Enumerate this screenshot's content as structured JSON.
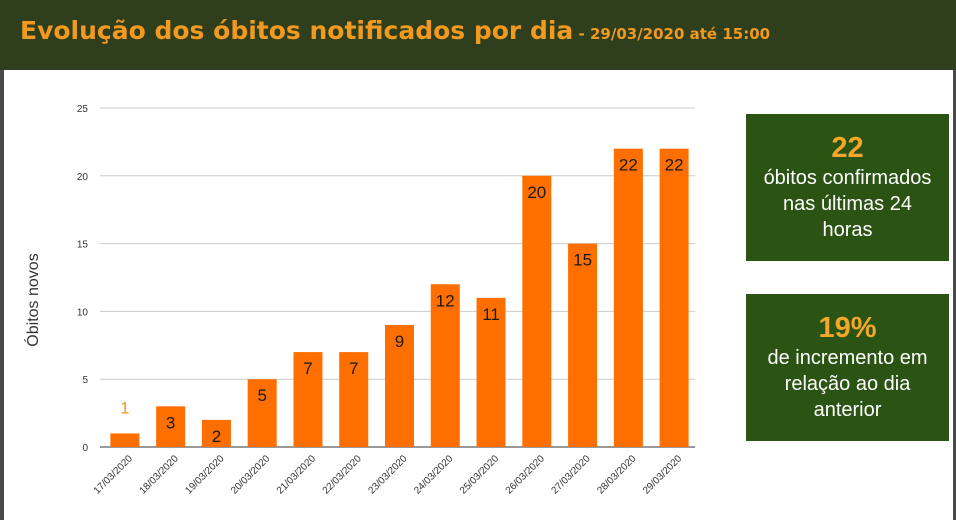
{
  "header": {
    "title": "Evolução dos óbitos notificados por dia",
    "subtitle": " - 29/03/2020 até 15:00"
  },
  "colors": {
    "header_bg": "#2f3e1c",
    "accent": "#f29a1f",
    "bar": "#ff6f00",
    "card_bg": "#2b5314"
  },
  "cards": [
    {
      "value": "22",
      "text": "óbitos confirmados nas últimas 24 horas"
    },
    {
      "value": "19%",
      "text": "de incremento em relação ao dia anterior"
    }
  ],
  "chart_data": {
    "type": "bar",
    "title": "",
    "xlabel": "",
    "ylabel": "Óbitos novos",
    "ylim": [
      0,
      25
    ],
    "yticks": [
      0,
      5,
      10,
      15,
      20,
      25
    ],
    "grid": true,
    "categories": [
      "17/03/2020",
      "18/03/2020",
      "19/03/2020",
      "20/03/2020",
      "21/03/2020",
      "22/03/2020",
      "23/03/2020",
      "24/03/2020",
      "25/03/2020",
      "26/03/2020",
      "27/03/2020",
      "28/03/2020",
      "29/03/2020"
    ],
    "values": [
      1,
      3,
      2,
      5,
      7,
      7,
      9,
      12,
      11,
      20,
      15,
      22,
      22
    ]
  }
}
